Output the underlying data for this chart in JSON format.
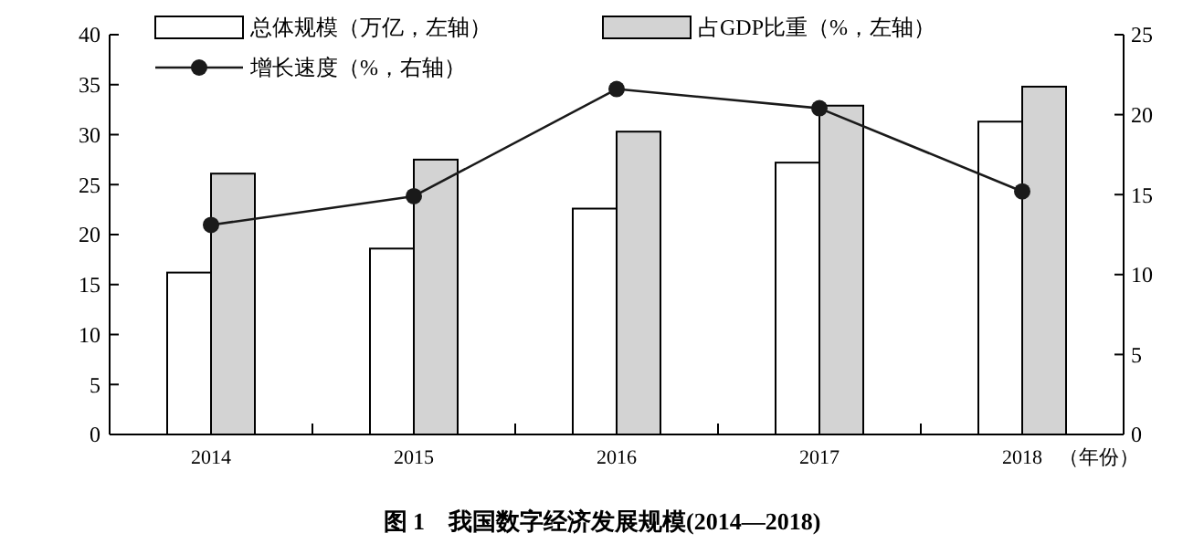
{
  "chart_data": {
    "type": "bar",
    "title": "图 1　我国数字经济发展规模(2014—2018)",
    "xlabel": "（年份）",
    "categories": [
      "2014",
      "2015",
      "2016",
      "2017",
      "2018"
    ],
    "series": [
      {
        "name": "总体规模（万亿，左轴）",
        "color": "#ffffff",
        "values": [
          16.2,
          18.6,
          22.6,
          27.2,
          31.3
        ]
      },
      {
        "name": "占GDP比重（%，左轴）",
        "color": "#d3d3d3",
        "values": [
          26.1,
          27.5,
          30.3,
          32.9,
          34.8
        ]
      },
      {
        "name": "增长速度（%，右轴）",
        "type": "line",
        "axis": "y2",
        "color": "#1a1a1a",
        "values": [
          13.1,
          14.9,
          21.6,
          20.4,
          15.2
        ]
      }
    ],
    "ylim": [
      0,
      40
    ],
    "yticks": [
      0,
      5,
      10,
      15,
      20,
      25,
      30,
      35,
      40
    ],
    "y2lim": [
      0,
      25
    ],
    "y2ticks": [
      0,
      5,
      10,
      15,
      20,
      25
    ],
    "legend": "top",
    "marker": "circle",
    "grid": false
  }
}
